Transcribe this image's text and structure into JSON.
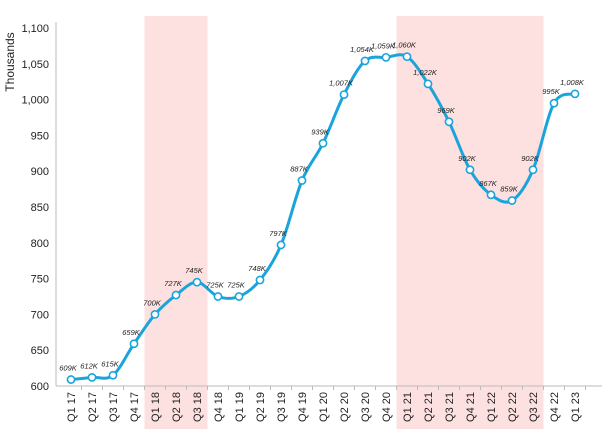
{
  "chart_data": {
    "type": "line",
    "ylabel": "Thousands",
    "ylim": [
      600,
      1100
    ],
    "yticks": [
      "600",
      "650",
      "700",
      "750",
      "800",
      "850",
      "900",
      "950",
      "1,000",
      "1,050",
      "1,100"
    ],
    "grid": false,
    "categories": [
      "Q1 17",
      "Q2 17",
      "Q3 17",
      "Q4 17",
      "Q1 18",
      "Q2 18",
      "Q3 18",
      "Q4 18",
      "Q1 19",
      "Q2 19",
      "Q3 19",
      "Q4 19",
      "Q1 20",
      "Q2 20",
      "Q3 20",
      "Q4 20",
      "Q1 21",
      "Q2 21",
      "Q3 21",
      "Q4 21",
      "Q1 22",
      "Q2 22",
      "Q3 22",
      "Q4 22",
      "Q1 23"
    ],
    "values": [
      609,
      612,
      615,
      659,
      700,
      727,
      745,
      725,
      725,
      748,
      797,
      887,
      939,
      1007,
      1054,
      1059,
      1060,
      1022,
      969,
      902,
      867,
      859,
      902,
      995,
      1008
    ],
    "data_labels": [
      "609K",
      "612K",
      "615K",
      "659K",
      "700K",
      "727K",
      "745K",
      "725K",
      "725K",
      "748K",
      "797K",
      "887K",
      "939K",
      "1,007K",
      "1,054K",
      "1,059K",
      "1,060K",
      "1,022K",
      "969K",
      "902K",
      "867K",
      "859K",
      "902K",
      "995K",
      "1,008K"
    ],
    "shaded_ranges": [
      {
        "start": "Q1 18",
        "end": "Q3 18"
      },
      {
        "start": "Q1 21",
        "end": "Q3 22"
      }
    ],
    "colors": {
      "line": "#1ba4dc",
      "marker_fill": "#ffffff",
      "shade": "#fde0e0"
    }
  }
}
